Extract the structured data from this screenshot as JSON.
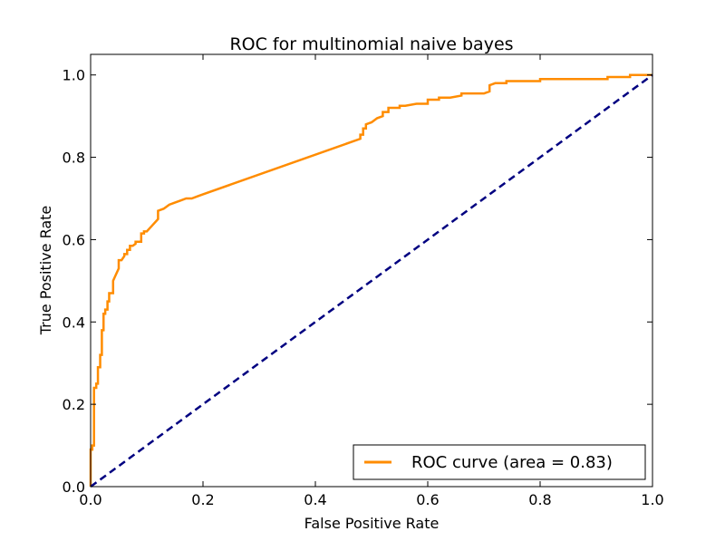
{
  "chart_data": {
    "type": "line",
    "title": "ROC for multinomial naive bayes",
    "xlabel": "False Positive Rate",
    "ylabel": "True Positive Rate",
    "xlim": [
      0.0,
      1.0
    ],
    "ylim": [
      0.0,
      1.05
    ],
    "xticks": [
      "0.0",
      "0.2",
      "0.4",
      "0.6",
      "0.8",
      "1.0"
    ],
    "yticks": [
      "0.0",
      "0.2",
      "0.4",
      "0.6",
      "0.8",
      "1.0"
    ],
    "grid": false,
    "legend_position": "lower-right",
    "series": [
      {
        "name": "ROC curve (area = 0.83)",
        "color": "#ff8c00",
        "style": "solid",
        "x": [
          0.0,
          0.0,
          0.003,
          0.003,
          0.006,
          0.006,
          0.01,
          0.01,
          0.013,
          0.013,
          0.017,
          0.017,
          0.02,
          0.02,
          0.023,
          0.023,
          0.026,
          0.026,
          0.03,
          0.03,
          0.033,
          0.033,
          0.04,
          0.04,
          0.05,
          0.05,
          0.055,
          0.06,
          0.06,
          0.065,
          0.065,
          0.07,
          0.07,
          0.075,
          0.08,
          0.08,
          0.09,
          0.09,
          0.095,
          0.095,
          0.1,
          0.11,
          0.12,
          0.12,
          0.13,
          0.14,
          0.15,
          0.16,
          0.17,
          0.18,
          0.19,
          0.2,
          0.48,
          0.48,
          0.485,
          0.485,
          0.49,
          0.49,
          0.5,
          0.51,
          0.52,
          0.52,
          0.53,
          0.53,
          0.55,
          0.55,
          0.56,
          0.58,
          0.6,
          0.6,
          0.62,
          0.62,
          0.64,
          0.66,
          0.66,
          0.7,
          0.71,
          0.71,
          0.72,
          0.74,
          0.74,
          0.8,
          0.8,
          0.9,
          0.92,
          0.92,
          0.96,
          0.96,
          1.0
        ],
        "y": [
          0.0,
          0.09,
          0.09,
          0.1,
          0.1,
          0.24,
          0.24,
          0.25,
          0.25,
          0.29,
          0.29,
          0.32,
          0.32,
          0.38,
          0.38,
          0.42,
          0.42,
          0.43,
          0.43,
          0.45,
          0.45,
          0.47,
          0.47,
          0.5,
          0.53,
          0.55,
          0.55,
          0.56,
          0.565,
          0.565,
          0.575,
          0.575,
          0.585,
          0.585,
          0.59,
          0.595,
          0.595,
          0.615,
          0.615,
          0.62,
          0.62,
          0.635,
          0.65,
          0.67,
          0.675,
          0.685,
          0.69,
          0.695,
          0.7,
          0.7,
          0.705,
          0.71,
          0.845,
          0.855,
          0.855,
          0.87,
          0.87,
          0.88,
          0.885,
          0.895,
          0.9,
          0.91,
          0.91,
          0.92,
          0.92,
          0.925,
          0.925,
          0.93,
          0.93,
          0.94,
          0.94,
          0.945,
          0.945,
          0.95,
          0.955,
          0.955,
          0.96,
          0.975,
          0.98,
          0.98,
          0.985,
          0.985,
          0.99,
          0.99,
          0.99,
          0.995,
          0.995,
          1.0,
          1.0
        ]
      },
      {
        "name": "",
        "color": "#000080",
        "style": "dashed",
        "x": [
          0.0,
          1.0
        ],
        "y": [
          0.0,
          1.0
        ]
      }
    ]
  }
}
